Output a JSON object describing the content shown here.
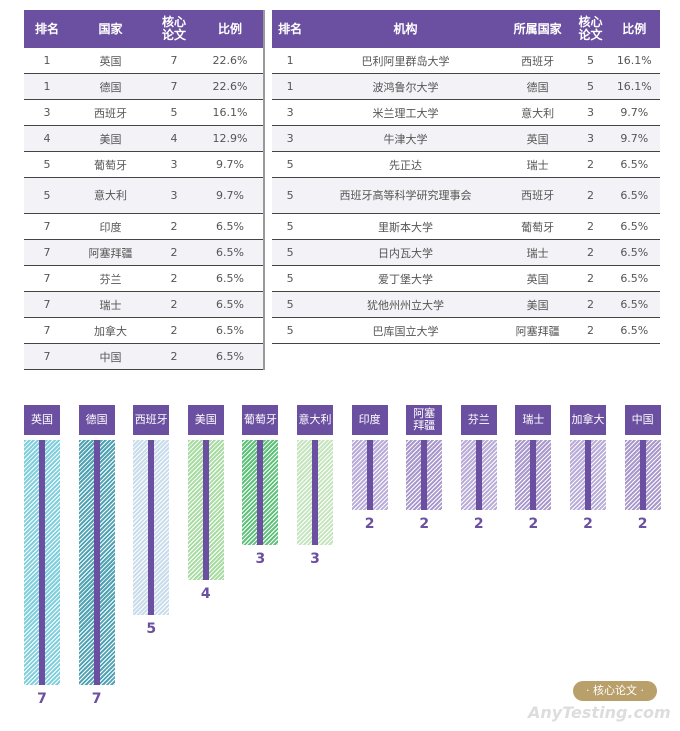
{
  "chart_data": [
    {
      "type": "table",
      "columns": [
        "排名",
        "国家",
        "核心论文",
        "比例"
      ],
      "rows": [
        [
          "1",
          "英国",
          "7",
          "22.6%"
        ],
        [
          "1",
          "德国",
          "7",
          "22.6%"
        ],
        [
          "3",
          "西班牙",
          "5",
          "16.1%"
        ],
        [
          "4",
          "美国",
          "4",
          "12.9%"
        ],
        [
          "5",
          "葡萄牙",
          "3",
          "9.7%"
        ],
        [
          "5",
          "意大利",
          "3",
          "9.7%"
        ],
        [
          "7",
          "印度",
          "2",
          "6.5%"
        ],
        [
          "7",
          "阿塞拜疆",
          "2",
          "6.5%"
        ],
        [
          "7",
          "芬兰",
          "2",
          "6.5%"
        ],
        [
          "7",
          "瑞士",
          "2",
          "6.5%"
        ],
        [
          "7",
          "加拿大",
          "2",
          "6.5%"
        ],
        [
          "7",
          "中国",
          "2",
          "6.5%"
        ]
      ]
    },
    {
      "type": "table",
      "columns": [
        "排名",
        "机构",
        "所属国家",
        "核心论文",
        "比例"
      ],
      "rows": [
        [
          "1",
          "巴利阿里群岛大学",
          "西班牙",
          "5",
          "16.1%"
        ],
        [
          "1",
          "波鸿鲁尔大学",
          "德国",
          "5",
          "16.1%"
        ],
        [
          "3",
          "米兰理工大学",
          "意大利",
          "3",
          "9.7%"
        ],
        [
          "3",
          "牛津大学",
          "英国",
          "3",
          "9.7%"
        ],
        [
          "5",
          "先正达",
          "瑞士",
          "2",
          "6.5%"
        ],
        [
          "5",
          "西班牙高等科学研究理事会",
          "西班牙",
          "2",
          "6.5%"
        ],
        [
          "5",
          "里斯本大学",
          "葡萄牙",
          "2",
          "6.5%"
        ],
        [
          "5",
          "日内瓦大学",
          "瑞士",
          "2",
          "6.5%"
        ],
        [
          "5",
          "爱丁堡大学",
          "英国",
          "2",
          "6.5%"
        ],
        [
          "5",
          "犹他州州立大学",
          "美国",
          "2",
          "6.5%"
        ],
        [
          "5",
          "巴库国立大学",
          "阿塞拜疆",
          "2",
          "6.5%"
        ]
      ]
    },
    {
      "type": "bar",
      "categories": [
        "英国",
        "德国",
        "西班牙",
        "美国",
        "葡萄牙",
        "意大利",
        "印度",
        "阿塞拜疆",
        "芬兰",
        "瑞士",
        "加拿大",
        "中国"
      ],
      "values": [
        7,
        7,
        5,
        4,
        3,
        3,
        2,
        2,
        2,
        2,
        2,
        2
      ],
      "colors": [
        "#7fd0dc",
        "#4fa3b3",
        "#c9dceb",
        "#a9dca2",
        "#5ec27b",
        "#c6e5be",
        "#b9acd8",
        "#a898cc",
        "#b9acd8",
        "#a898cc",
        "#b9acd8",
        "#a898cc"
      ],
      "accent": "#6b4fa0"
    }
  ],
  "badge": "· 核心论文 ·",
  "watermark": "AnyTesting.com"
}
